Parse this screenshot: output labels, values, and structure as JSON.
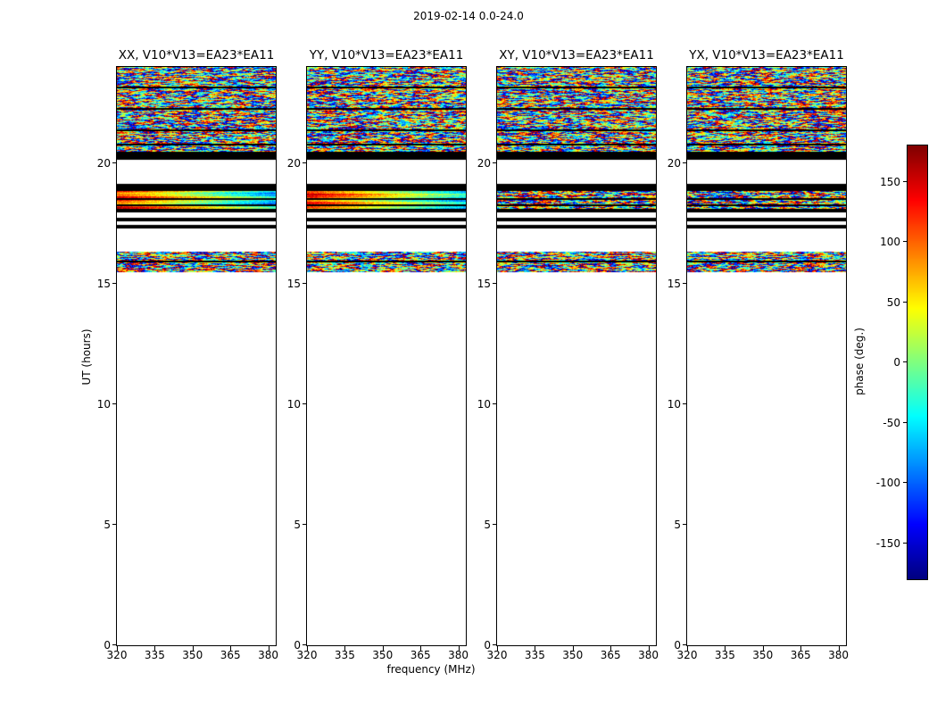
{
  "chart_data": {
    "type": "heatmap",
    "title": "2019-02-14 0.0-24.0",
    "xlabel": "frequency (MHz)",
    "ylabel": "UT (hours)",
    "xlim": [
      320,
      383
    ],
    "ylim": [
      0,
      24
    ],
    "x_ticks": [
      320,
      335,
      350,
      365,
      380
    ],
    "y_ticks": [
      0,
      5,
      10,
      15,
      20
    ],
    "panels": [
      {
        "title": "XX, V10*V13=EA23*EA11",
        "coherent_band": true
      },
      {
        "title": "YY, V10*V13=EA23*EA11",
        "coherent_band": true
      },
      {
        "title": "XY, V10*V13=EA23*EA11",
        "coherent_band": false
      },
      {
        "title": "YX, V10*V13=EA23*EA11",
        "coherent_band": false
      }
    ],
    "value_label": "phase (deg.)",
    "value_range": [
      -180,
      180
    ],
    "colorbar_ticks": [
      150,
      100,
      50,
      0,
      -50,
      -100,
      -150
    ],
    "colormap": "jet",
    "time_bands": [
      {
        "ut_from": 20.5,
        "ut_to": 24.0,
        "content": "noise",
        "style": "speckle"
      },
      {
        "ut_from": 20.15,
        "ut_to": 20.5,
        "content": "black"
      },
      {
        "ut_from": 19.15,
        "ut_to": 20.15,
        "content": "white"
      },
      {
        "ut_from": 18.85,
        "ut_to": 19.15,
        "content": "black"
      },
      {
        "ut_from": 18.1,
        "ut_to": 18.85,
        "content": "noise",
        "style": "coherent"
      },
      {
        "ut_from": 17.95,
        "ut_to": 18.1,
        "content": "black"
      },
      {
        "ut_from": 17.75,
        "ut_to": 17.95,
        "content": "white"
      },
      {
        "ut_from": 17.6,
        "ut_to": 17.75,
        "content": "black"
      },
      {
        "ut_from": 17.45,
        "ut_to": 17.6,
        "content": "white"
      },
      {
        "ut_from": 17.3,
        "ut_to": 17.45,
        "content": "black"
      },
      {
        "ut_from": 16.35,
        "ut_to": 17.3,
        "content": "white"
      },
      {
        "ut_from": 15.5,
        "ut_to": 16.35,
        "content": "noise",
        "style": "speckle"
      },
      {
        "ut_from": 0,
        "ut_to": 15.5,
        "content": "white"
      }
    ],
    "black_lines_ut": [
      23.2,
      22.3,
      21.4,
      20.8,
      18.55,
      18.3,
      15.95
    ]
  }
}
